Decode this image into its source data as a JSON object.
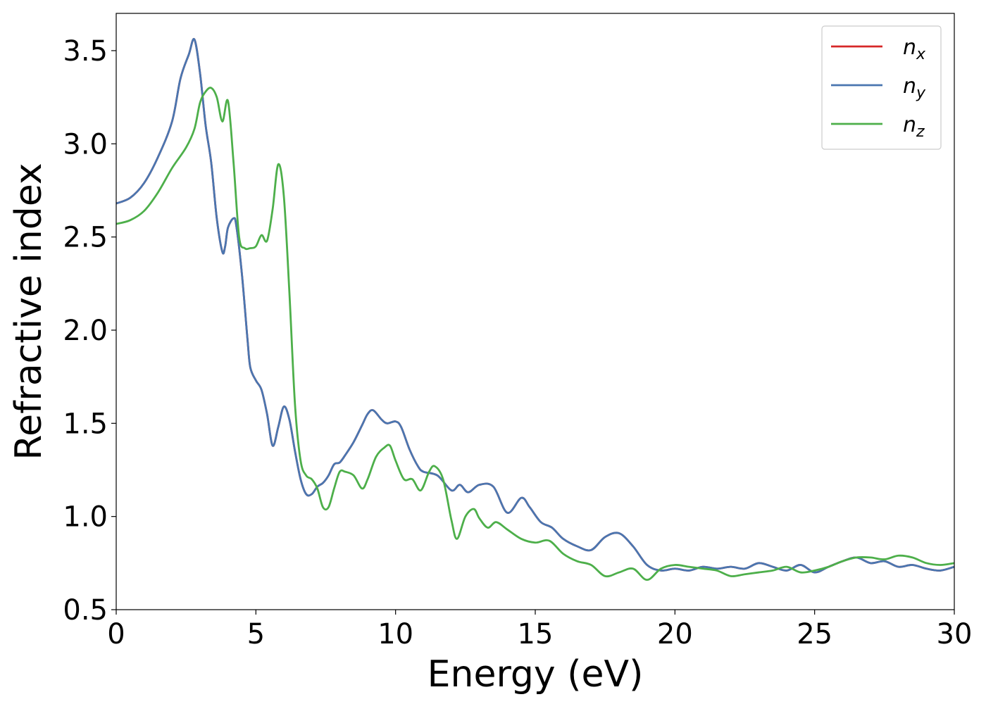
{
  "chart_data": {
    "type": "line",
    "xlabel": "Energy (eV)",
    "ylabel": "Refractive index",
    "xlim": [
      0,
      30
    ],
    "ylim": [
      0.5,
      3.7
    ],
    "xticks": [
      0,
      5,
      10,
      15,
      20,
      25,
      30
    ],
    "xtick_labels": [
      "0",
      "5",
      "10",
      "15",
      "20",
      "25",
      "30"
    ],
    "yticks": [
      0.5,
      1.0,
      1.5,
      2.0,
      2.5,
      3.0,
      3.5
    ],
    "ytick_labels": [
      "0.5",
      "1.0",
      "1.5",
      "2.0",
      "2.5",
      "3.0",
      "3.5"
    ],
    "grid": false,
    "legend_position": "top-right",
    "series": [
      {
        "name": "n_x",
        "label_base": "n",
        "label_sub": "x",
        "color": "#d62728",
        "x": [
          0,
          0.5,
          1.0,
          1.5,
          2.0,
          2.3,
          2.6,
          2.8,
          3.0,
          3.2,
          3.4,
          3.6,
          3.8,
          3.9,
          4.0,
          4.2,
          4.3,
          4.5,
          4.7,
          4.8,
          5.0,
          5.2,
          5.4,
          5.6,
          5.8,
          6.0,
          6.2,
          6.4,
          6.6,
          6.8,
          7.0,
          7.2,
          7.4,
          7.6,
          7.8,
          8.0,
          8.2,
          8.5,
          8.8,
          9.0,
          9.2,
          9.5,
          9.7,
          10.0,
          10.2,
          10.5,
          10.8,
          11.0,
          11.5,
          12.0,
          12.3,
          12.6,
          13.0,
          13.5,
          14.0,
          14.5,
          14.8,
          15.2,
          15.6,
          16.0,
          16.5,
          17.0,
          17.5,
          18.0,
          18.5,
          19.0,
          19.5,
          20.0,
          20.5,
          21.0,
          21.5,
          22.0,
          22.5,
          23.0,
          23.5,
          24.0,
          24.5,
          25.0,
          25.5,
          26.0,
          26.5,
          27.0,
          27.5,
          28.0,
          28.5,
          29.0,
          29.5,
          30.0
        ],
        "y": [
          2.68,
          2.71,
          2.79,
          2.93,
          3.12,
          3.35,
          3.48,
          3.56,
          3.38,
          3.1,
          2.9,
          2.6,
          2.42,
          2.45,
          2.55,
          2.6,
          2.56,
          2.3,
          1.95,
          1.8,
          1.73,
          1.68,
          1.55,
          1.38,
          1.48,
          1.59,
          1.52,
          1.35,
          1.2,
          1.12,
          1.12,
          1.16,
          1.18,
          1.22,
          1.28,
          1.29,
          1.33,
          1.4,
          1.49,
          1.55,
          1.57,
          1.52,
          1.5,
          1.51,
          1.48,
          1.36,
          1.27,
          1.24,
          1.22,
          1.14,
          1.17,
          1.13,
          1.17,
          1.16,
          1.02,
          1.1,
          1.05,
          0.97,
          0.94,
          0.88,
          0.84,
          0.82,
          0.89,
          0.91,
          0.84,
          0.74,
          0.71,
          0.72,
          0.71,
          0.73,
          0.72,
          0.73,
          0.72,
          0.75,
          0.73,
          0.71,
          0.74,
          0.7,
          0.73,
          0.76,
          0.78,
          0.75,
          0.76,
          0.73,
          0.74,
          0.72,
          0.71,
          0.73
        ]
      },
      {
        "name": "n_y",
        "label_base": "n",
        "label_sub": "y",
        "color": "#4a76b0",
        "x": [
          0,
          0.5,
          1.0,
          1.5,
          2.0,
          2.3,
          2.6,
          2.8,
          3.0,
          3.2,
          3.4,
          3.6,
          3.8,
          3.9,
          4.0,
          4.2,
          4.3,
          4.5,
          4.7,
          4.8,
          5.0,
          5.2,
          5.4,
          5.6,
          5.8,
          6.0,
          6.2,
          6.4,
          6.6,
          6.8,
          7.0,
          7.2,
          7.4,
          7.6,
          7.8,
          8.0,
          8.2,
          8.5,
          8.8,
          9.0,
          9.2,
          9.5,
          9.7,
          10.0,
          10.2,
          10.5,
          10.8,
          11.0,
          11.5,
          12.0,
          12.3,
          12.6,
          13.0,
          13.5,
          14.0,
          14.5,
          14.8,
          15.2,
          15.6,
          16.0,
          16.5,
          17.0,
          17.5,
          18.0,
          18.5,
          19.0,
          19.5,
          20.0,
          20.5,
          21.0,
          21.5,
          22.0,
          22.5,
          23.0,
          23.5,
          24.0,
          24.5,
          25.0,
          25.5,
          26.0,
          26.5,
          27.0,
          27.5,
          28.0,
          28.5,
          29.0,
          29.5,
          30.0
        ],
        "y": [
          2.68,
          2.71,
          2.79,
          2.93,
          3.12,
          3.35,
          3.48,
          3.56,
          3.38,
          3.1,
          2.9,
          2.6,
          2.42,
          2.45,
          2.55,
          2.6,
          2.56,
          2.3,
          1.95,
          1.8,
          1.73,
          1.68,
          1.55,
          1.38,
          1.48,
          1.59,
          1.52,
          1.35,
          1.2,
          1.12,
          1.12,
          1.16,
          1.18,
          1.22,
          1.28,
          1.29,
          1.33,
          1.4,
          1.49,
          1.55,
          1.57,
          1.52,
          1.5,
          1.51,
          1.48,
          1.36,
          1.27,
          1.24,
          1.22,
          1.14,
          1.17,
          1.13,
          1.17,
          1.16,
          1.02,
          1.1,
          1.05,
          0.97,
          0.94,
          0.88,
          0.84,
          0.82,
          0.89,
          0.91,
          0.84,
          0.74,
          0.71,
          0.72,
          0.71,
          0.73,
          0.72,
          0.73,
          0.72,
          0.75,
          0.73,
          0.71,
          0.74,
          0.7,
          0.73,
          0.76,
          0.78,
          0.75,
          0.76,
          0.73,
          0.74,
          0.72,
          0.71,
          0.73
        ]
      },
      {
        "name": "n_z",
        "label_base": "n",
        "label_sub": "z",
        "color": "#4daf4a",
        "x": [
          0,
          0.5,
          1.0,
          1.5,
          2.0,
          2.5,
          2.8,
          3.0,
          3.2,
          3.4,
          3.6,
          3.8,
          4.0,
          4.2,
          4.4,
          4.6,
          4.8,
          5.0,
          5.2,
          5.4,
          5.6,
          5.8,
          6.0,
          6.2,
          6.4,
          6.6,
          6.8,
          7.0,
          7.2,
          7.4,
          7.6,
          7.8,
          8.0,
          8.2,
          8.5,
          8.8,
          9.0,
          9.3,
          9.6,
          9.8,
          10.0,
          10.3,
          10.6,
          10.9,
          11.2,
          11.4,
          11.7,
          12.0,
          12.2,
          12.5,
          12.8,
          13.0,
          13.3,
          13.6,
          14.0,
          14.5,
          15.0,
          15.5,
          16.0,
          16.5,
          17.0,
          17.5,
          18.0,
          18.5,
          19.0,
          19.5,
          20.0,
          20.5,
          21.0,
          21.5,
          22.0,
          22.5,
          23.0,
          23.5,
          24.0,
          24.5,
          25.0,
          25.5,
          26.0,
          26.5,
          27.0,
          27.5,
          28.0,
          28.5,
          29.0,
          29.5,
          30.0
        ],
        "y": [
          2.57,
          2.59,
          2.64,
          2.74,
          2.87,
          2.98,
          3.08,
          3.22,
          3.28,
          3.3,
          3.25,
          3.12,
          3.23,
          2.9,
          2.5,
          2.44,
          2.44,
          2.45,
          2.51,
          2.48,
          2.65,
          2.89,
          2.72,
          2.2,
          1.6,
          1.3,
          1.22,
          1.2,
          1.15,
          1.05,
          1.05,
          1.15,
          1.24,
          1.24,
          1.22,
          1.15,
          1.2,
          1.32,
          1.37,
          1.38,
          1.3,
          1.2,
          1.2,
          1.14,
          1.24,
          1.27,
          1.2,
          0.98,
          0.88,
          1.0,
          1.04,
          0.99,
          0.94,
          0.97,
          0.93,
          0.88,
          0.86,
          0.87,
          0.8,
          0.76,
          0.74,
          0.68,
          0.7,
          0.72,
          0.66,
          0.72,
          0.74,
          0.73,
          0.72,
          0.71,
          0.68,
          0.69,
          0.7,
          0.71,
          0.73,
          0.7,
          0.71,
          0.73,
          0.76,
          0.78,
          0.78,
          0.77,
          0.79,
          0.78,
          0.75,
          0.74,
          0.75
        ]
      }
    ]
  }
}
